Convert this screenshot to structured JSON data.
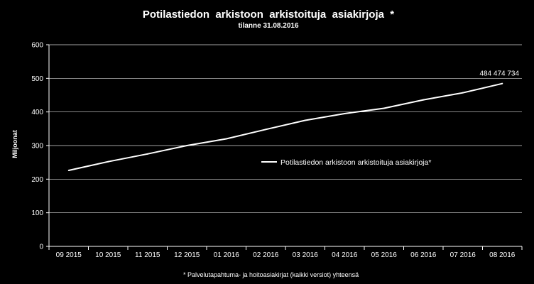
{
  "colors": {
    "background": "#000000",
    "foreground": "#ffffff",
    "grid": "#ffffff",
    "series_line": "#ffffff"
  },
  "chart_data": {
    "type": "line",
    "title": "Potilastiedon  arkistoon  arkistoituja  asiakirjoja  *",
    "subtitle": "tilanne 31.08.2016",
    "ylabel": "Miljoonat",
    "xlabel": "",
    "footnote": "* Palvelutapahtuma- ja hoitoasiakirjat (kaikki versiot) yhteensä",
    "categories": [
      "09 2015",
      "10 2015",
      "11 2015",
      "12 2015",
      "01 2016",
      "02 2016",
      "03 2016",
      "04 2016",
      "05 2016",
      "06 2016",
      "07 2016",
      "08 2016"
    ],
    "y_ticks": [
      "0",
      "100",
      "200",
      "300",
      "400",
      "500",
      "600"
    ],
    "ylim": [
      0,
      600
    ],
    "grid": true,
    "legend_position": "right",
    "series": [
      {
        "name": "Potilastiedon arkistoon arkistoituja asiakirjoja*",
        "values": [
          226,
          252,
          275,
          300,
          320,
          348,
          375,
          395,
          411,
          436,
          457,
          484.47
        ],
        "last_point_label": "484 474 734"
      }
    ]
  }
}
